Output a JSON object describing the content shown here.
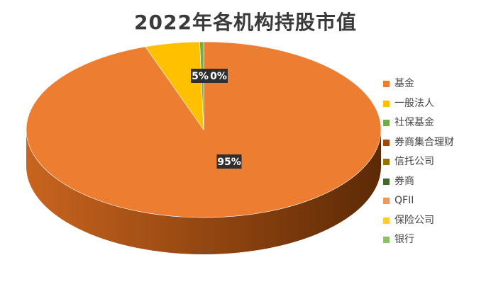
{
  "chart_data": {
    "type": "pie",
    "title": "2022年各机构持股市值",
    "categories": [
      "基金",
      "一般法人",
      "社保基金",
      "券商集合理财",
      "信托公司",
      "券商",
      "QFII",
      "保险公司",
      "银行"
    ],
    "values": [
      95,
      5,
      0,
      0,
      0,
      0,
      0,
      0,
      0
    ],
    "data_labels": [
      "95%",
      "5%",
      "0%",
      "",
      "",
      "",
      "",
      "",
      ""
    ],
    "legend_position": "right",
    "colors": [
      "#ed7d31",
      "#ffc000",
      "#70ad47",
      "#9e480e",
      "#997300",
      "#43682b",
      "#f1975a",
      "#ffcd33",
      "#8cc168"
    ],
    "style": "3d-pie"
  }
}
